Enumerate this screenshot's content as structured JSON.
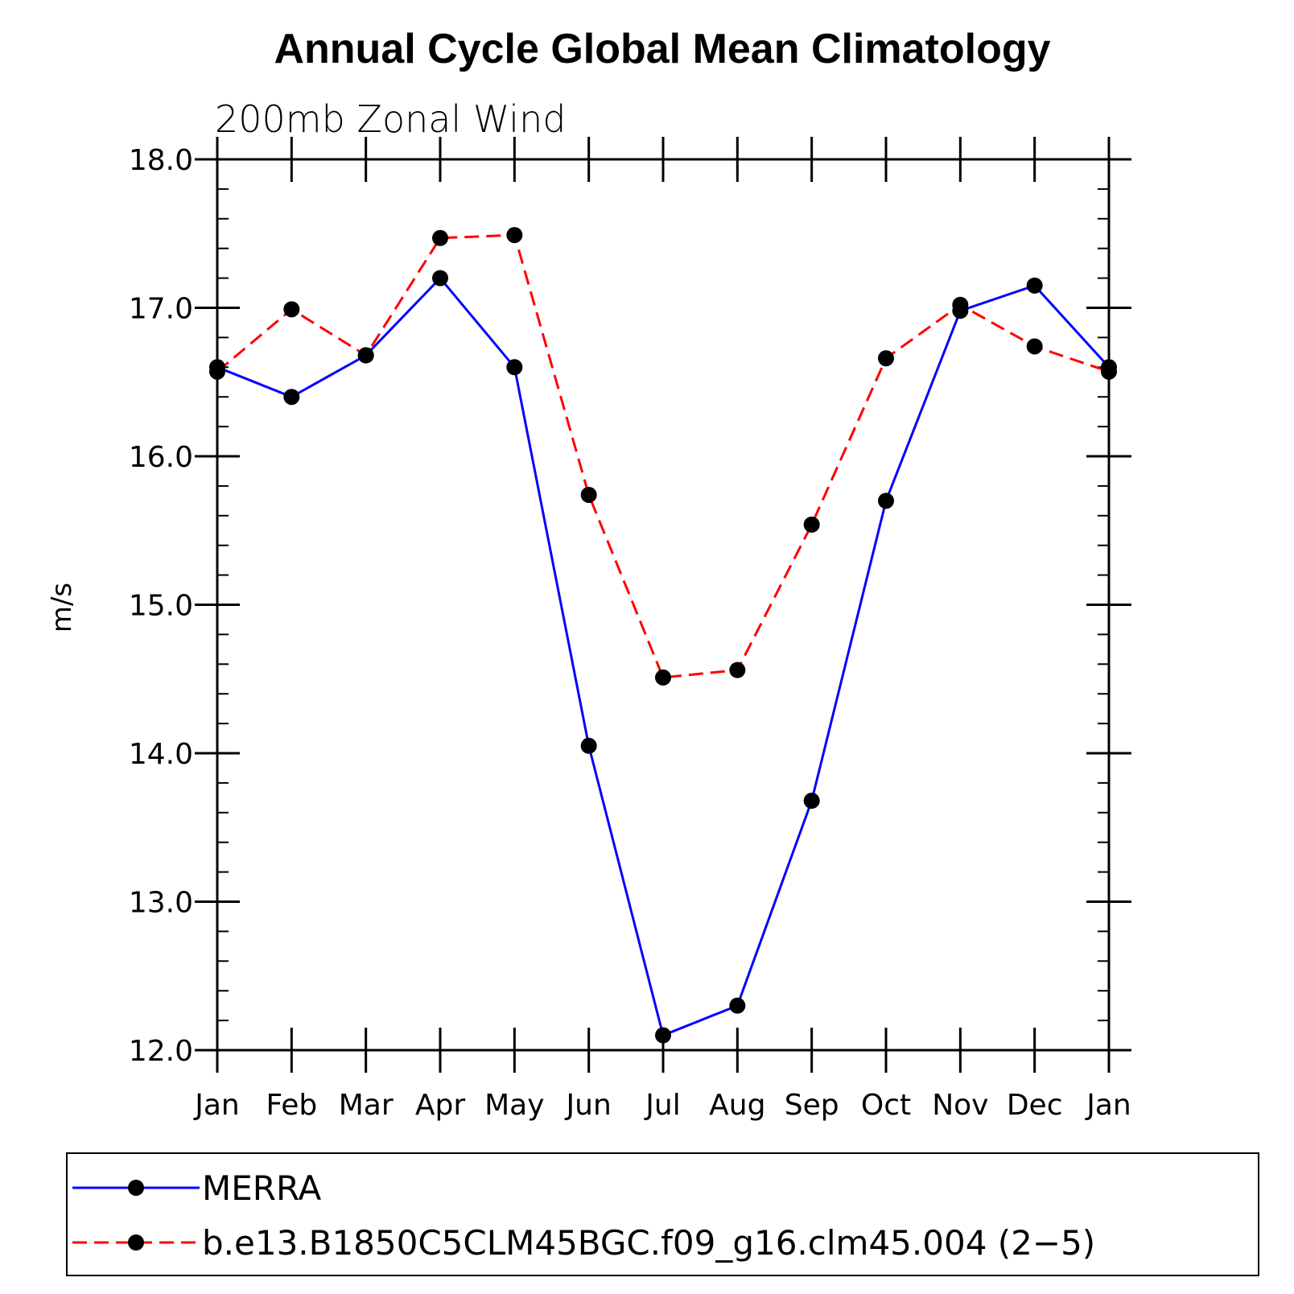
{
  "chart_data": {
    "type": "line",
    "title": "Annual Cycle Global Mean Climatology",
    "subtitle": "200mb Zonal Wind",
    "xlabel": "",
    "ylabel": "m/s",
    "categories": [
      "Jan",
      "Feb",
      "Mar",
      "Apr",
      "May",
      "Jun",
      "Jul",
      "Aug",
      "Sep",
      "Oct",
      "Nov",
      "Dec",
      "Jan"
    ],
    "ylim": [
      12.0,
      18.0
    ],
    "yticks": [
      "12.0",
      "13.0",
      "14.0",
      "15.0",
      "16.0",
      "17.0",
      "18.0"
    ],
    "ytick_values": [
      12.0,
      13.0,
      14.0,
      15.0,
      16.0,
      17.0,
      18.0
    ],
    "grid": false,
    "legend_position": "bottom",
    "series": [
      {
        "name": "MERRA",
        "color": "#0000ff",
        "style": "solid",
        "marker": "circle",
        "values": [
          16.6,
          16.4,
          16.68,
          17.2,
          16.6,
          14.05,
          12.1,
          12.3,
          13.68,
          15.7,
          16.98,
          17.15,
          16.6
        ]
      },
      {
        "name": "b.e13.B1850C5CLM45BGC.f09_g16.clm45.004 (2−5)",
        "color": "#ff0000",
        "style": "dashed",
        "marker": "circle",
        "values": [
          16.57,
          16.99,
          16.68,
          17.47,
          17.49,
          15.74,
          14.51,
          14.56,
          15.54,
          16.66,
          17.02,
          16.74,
          16.57
        ]
      }
    ]
  }
}
